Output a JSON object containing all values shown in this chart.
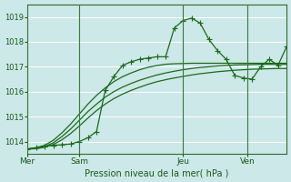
{
  "xlabel": "Pression niveau de la mer( hPa )",
  "bg_color": "#cce8e8",
  "grid_color": "#ffffff",
  "line_color": "#1a6b1a",
  "ylim": [
    1013.5,
    1019.5
  ],
  "yticks": [
    1014,
    1015,
    1016,
    1017,
    1018,
    1019
  ],
  "day_labels": [
    "Mer",
    "Sam",
    "Jeu",
    "Ven"
  ],
  "day_positions": [
    0,
    60,
    180,
    255
  ],
  "xlim_max": 300,
  "bg_lines": [
    [
      1013.7,
      1013.75,
      1013.85,
      1014.05,
      1014.35,
      1014.7,
      1015.1,
      1015.5,
      1015.85,
      1016.15,
      1016.4,
      1016.6,
      1016.75,
      1016.88,
      1016.98,
      1017.05,
      1017.1,
      1017.12,
      1017.13,
      1017.14,
      1017.14,
      1017.14,
      1017.14,
      1017.14,
      1017.14,
      1017.14,
      1017.14,
      1017.14,
      1017.14,
      1017.14,
      1017.14
    ],
    [
      1013.7,
      1013.72,
      1013.8,
      1013.95,
      1014.2,
      1014.5,
      1014.85,
      1015.2,
      1015.5,
      1015.78,
      1016.0,
      1016.18,
      1016.33,
      1016.46,
      1016.57,
      1016.67,
      1016.75,
      1016.82,
      1016.88,
      1016.93,
      1016.97,
      1017.0,
      1017.03,
      1017.05,
      1017.07,
      1017.08,
      1017.09,
      1017.1,
      1017.1,
      1017.1,
      1017.1
    ],
    [
      1013.7,
      1013.71,
      1013.77,
      1013.88,
      1014.07,
      1014.32,
      1014.62,
      1014.94,
      1015.24,
      1015.5,
      1015.72,
      1015.9,
      1016.05,
      1016.18,
      1016.3,
      1016.4,
      1016.48,
      1016.55,
      1016.61,
      1016.67,
      1016.72,
      1016.76,
      1016.8,
      1016.83,
      1016.86,
      1016.88,
      1016.9,
      1016.91,
      1016.92,
      1016.93,
      1016.93
    ]
  ],
  "main_line_x": [
    0,
    10,
    20,
    30,
    40,
    50,
    60,
    70,
    80,
    90,
    100,
    110,
    120,
    130,
    140,
    150,
    160,
    170,
    180,
    190,
    200,
    210,
    220,
    230,
    240,
    250,
    260,
    270,
    280,
    290,
    300
  ],
  "main_line_y": [
    1013.7,
    1013.75,
    1013.8,
    1013.85,
    1013.87,
    1013.9,
    1014.0,
    1014.15,
    1014.4,
    1016.05,
    1016.6,
    1017.05,
    1017.2,
    1017.3,
    1017.35,
    1017.4,
    1017.4,
    1018.55,
    1018.85,
    1018.95,
    1018.75,
    1018.1,
    1017.65,
    1017.3,
    1016.65,
    1016.55,
    1016.5,
    1017.0,
    1017.3,
    1017.05,
    1017.8
  ]
}
